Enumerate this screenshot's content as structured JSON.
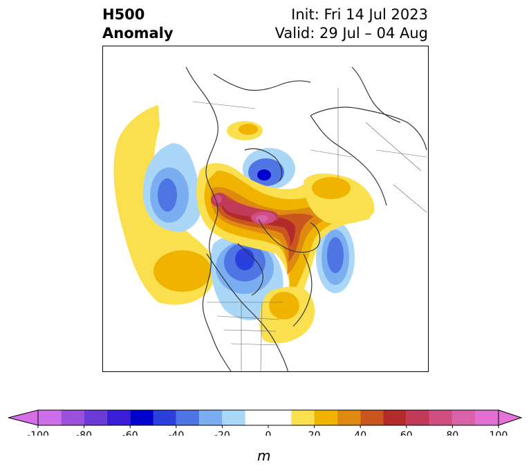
{
  "header": {
    "title_line1": "H500",
    "title_line2": "Anomaly",
    "init": "Init: Fri 14 Jul 2023",
    "valid": "Valid: 29 Jul – 04 Aug"
  },
  "map": {
    "projection": "north-polar-stereographic",
    "field": "500 hPa geopotential height anomaly",
    "features": [
      {
        "name": "positive-anomaly-arctic-canada",
        "sign": "positive",
        "peak_m": 85
      },
      {
        "name": "positive-anomaly-northern-russia",
        "sign": "positive",
        "peak_m": 20
      },
      {
        "name": "positive-anomaly-eastern-us",
        "sign": "positive",
        "peak_m": 25
      },
      {
        "name": "positive-anomaly-north-pacific",
        "sign": "positive",
        "peak_m": 25
      },
      {
        "name": "negative-anomaly-hudson-bay",
        "sign": "negative",
        "peak_m": -50
      },
      {
        "name": "negative-anomaly-gulf-of-alaska",
        "sign": "negative",
        "peak_m": -40
      },
      {
        "name": "negative-anomaly-north-atlantic",
        "sign": "negative",
        "peak_m": -40
      },
      {
        "name": "negative-anomaly-kara-sea",
        "sign": "negative",
        "peak_m": -55
      }
    ]
  },
  "colorbar": {
    "label": "m",
    "ticks": [
      "-100",
      "-80",
      "-60",
      "-40",
      "-20",
      "0",
      "20",
      "40",
      "60",
      "80",
      "100"
    ],
    "bounds": [
      -100,
      -90,
      -80,
      -70,
      -60,
      -50,
      -40,
      -30,
      -20,
      -10,
      10,
      20,
      30,
      40,
      50,
      60,
      70,
      80,
      90,
      100
    ],
    "colors": [
      "#cc6fe8",
      "#9b50dc",
      "#6a3ad6",
      "#3a1dd6",
      "#0000cc",
      "#2a3fdc",
      "#4f74e4",
      "#7aaef0",
      "#aad6f8",
      "#ffffff",
      "#fae04f",
      "#f0b400",
      "#de8a10",
      "#c8561e",
      "#b22a2a",
      "#c23a5a",
      "#cf5080",
      "#d863a8",
      "#e271d2"
    ],
    "extend_low_color": "#d56fe8",
    "extend_high_color": "#e472d8"
  }
}
